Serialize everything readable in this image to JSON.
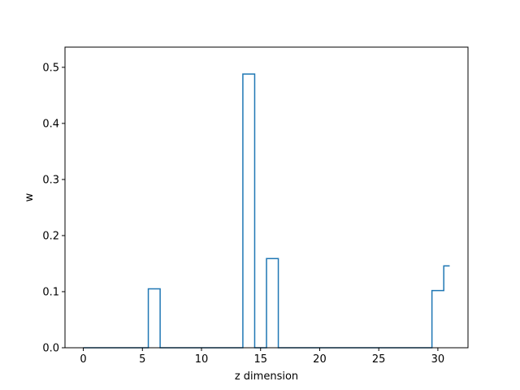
{
  "chart_data": {
    "type": "line",
    "drawstyle": "steps-mid",
    "xlabel": "z dimension",
    "ylabel": "w",
    "xlim": [
      -1.55,
      32.55
    ],
    "ylim": [
      0,
      0.536
    ],
    "xticks": [
      0,
      5,
      10,
      15,
      20,
      25,
      30
    ],
    "yticks": [
      0.0,
      0.1,
      0.2,
      0.3,
      0.4,
      0.5
    ],
    "xtick_labels": [
      "0",
      "5",
      "10",
      "15",
      "20",
      "25",
      "30"
    ],
    "ytick_labels": [
      "0.0",
      "0.1",
      "0.2",
      "0.3",
      "0.4",
      "0.5"
    ],
    "line_color": "#1f77b4",
    "grid": false,
    "series": [
      {
        "x": [
          0,
          1,
          2,
          3,
          4,
          5,
          6,
          7,
          8,
          9,
          10,
          11,
          12,
          13,
          14,
          15,
          16,
          17,
          18,
          19,
          20,
          21,
          22,
          23,
          24,
          25,
          26,
          27,
          28,
          29,
          30,
          31
        ],
        "y": [
          0,
          0,
          0,
          0,
          0,
          0,
          0.105,
          0,
          0,
          0,
          0,
          0,
          0,
          0,
          0.488,
          0,
          0.159,
          0,
          0,
          0,
          0,
          0,
          0,
          0,
          0,
          0,
          0,
          0,
          0,
          0,
          0.102,
          0.146
        ]
      }
    ]
  }
}
